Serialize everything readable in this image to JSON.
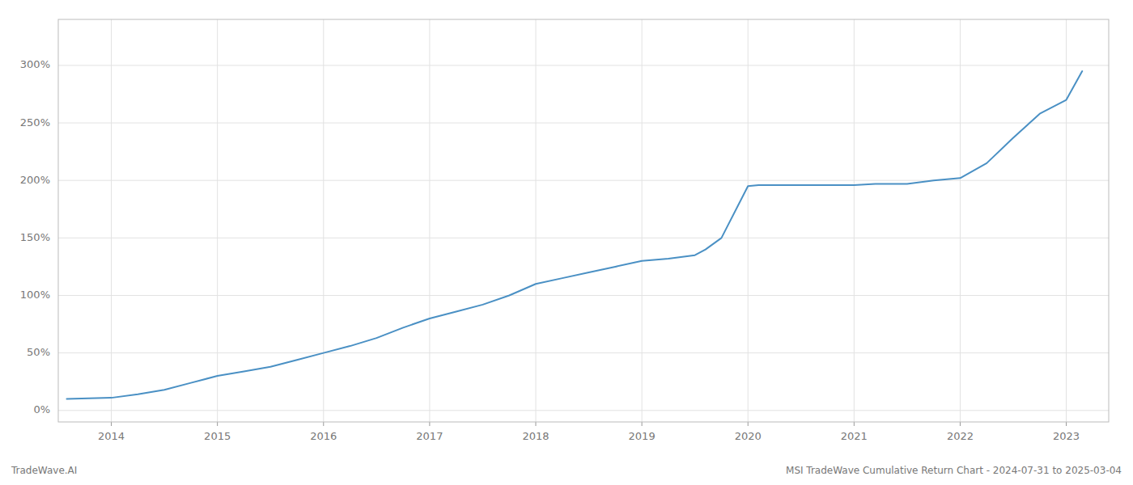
{
  "chart_data": {
    "type": "line",
    "x": [
      2013.58,
      2014.0,
      2014.25,
      2014.5,
      2014.75,
      2015.0,
      2015.25,
      2015.5,
      2015.75,
      2016.0,
      2016.25,
      2016.5,
      2016.75,
      2017.0,
      2017.25,
      2017.5,
      2017.75,
      2018.0,
      2018.25,
      2018.5,
      2018.75,
      2019.0,
      2019.25,
      2019.5,
      2019.6,
      2019.75,
      2020.0,
      2020.1,
      2020.2,
      2020.5,
      2021.0,
      2021.2,
      2021.5,
      2021.75,
      2022.0,
      2022.25,
      2022.5,
      2022.75,
      2023.0,
      2023.15
    ],
    "values": [
      10,
      11,
      14,
      18,
      24,
      30,
      34,
      38,
      44,
      50,
      56,
      63,
      72,
      80,
      86,
      92,
      100,
      110,
      115,
      120,
      125,
      130,
      132,
      135,
      140,
      150,
      195,
      196,
      196,
      196,
      196,
      197,
      197,
      200,
      202,
      215,
      237,
      258,
      270,
      295
    ],
    "color": "#4a90c4",
    "xlim": [
      2013.5,
      2023.4
    ],
    "ylim": [
      -10,
      340
    ],
    "xticks": [
      2014,
      2015,
      2016,
      2017,
      2018,
      2019,
      2020,
      2021,
      2022,
      2023
    ],
    "yticks": [
      {
        "value": 0,
        "label": "0%"
      },
      {
        "value": 50,
        "label": "50%"
      },
      {
        "value": 100,
        "label": "100%"
      },
      {
        "value": 150,
        "label": "150%"
      },
      {
        "value": 200,
        "label": "200%"
      },
      {
        "value": 250,
        "label": "250%"
      },
      {
        "value": 300,
        "label": "300%"
      }
    ],
    "grid": true,
    "annotations": [
      "TradeWave.AI",
      "MSI TradeWave Cumulative Return Chart - 2024-07-31 to 2025-03-04"
    ]
  }
}
